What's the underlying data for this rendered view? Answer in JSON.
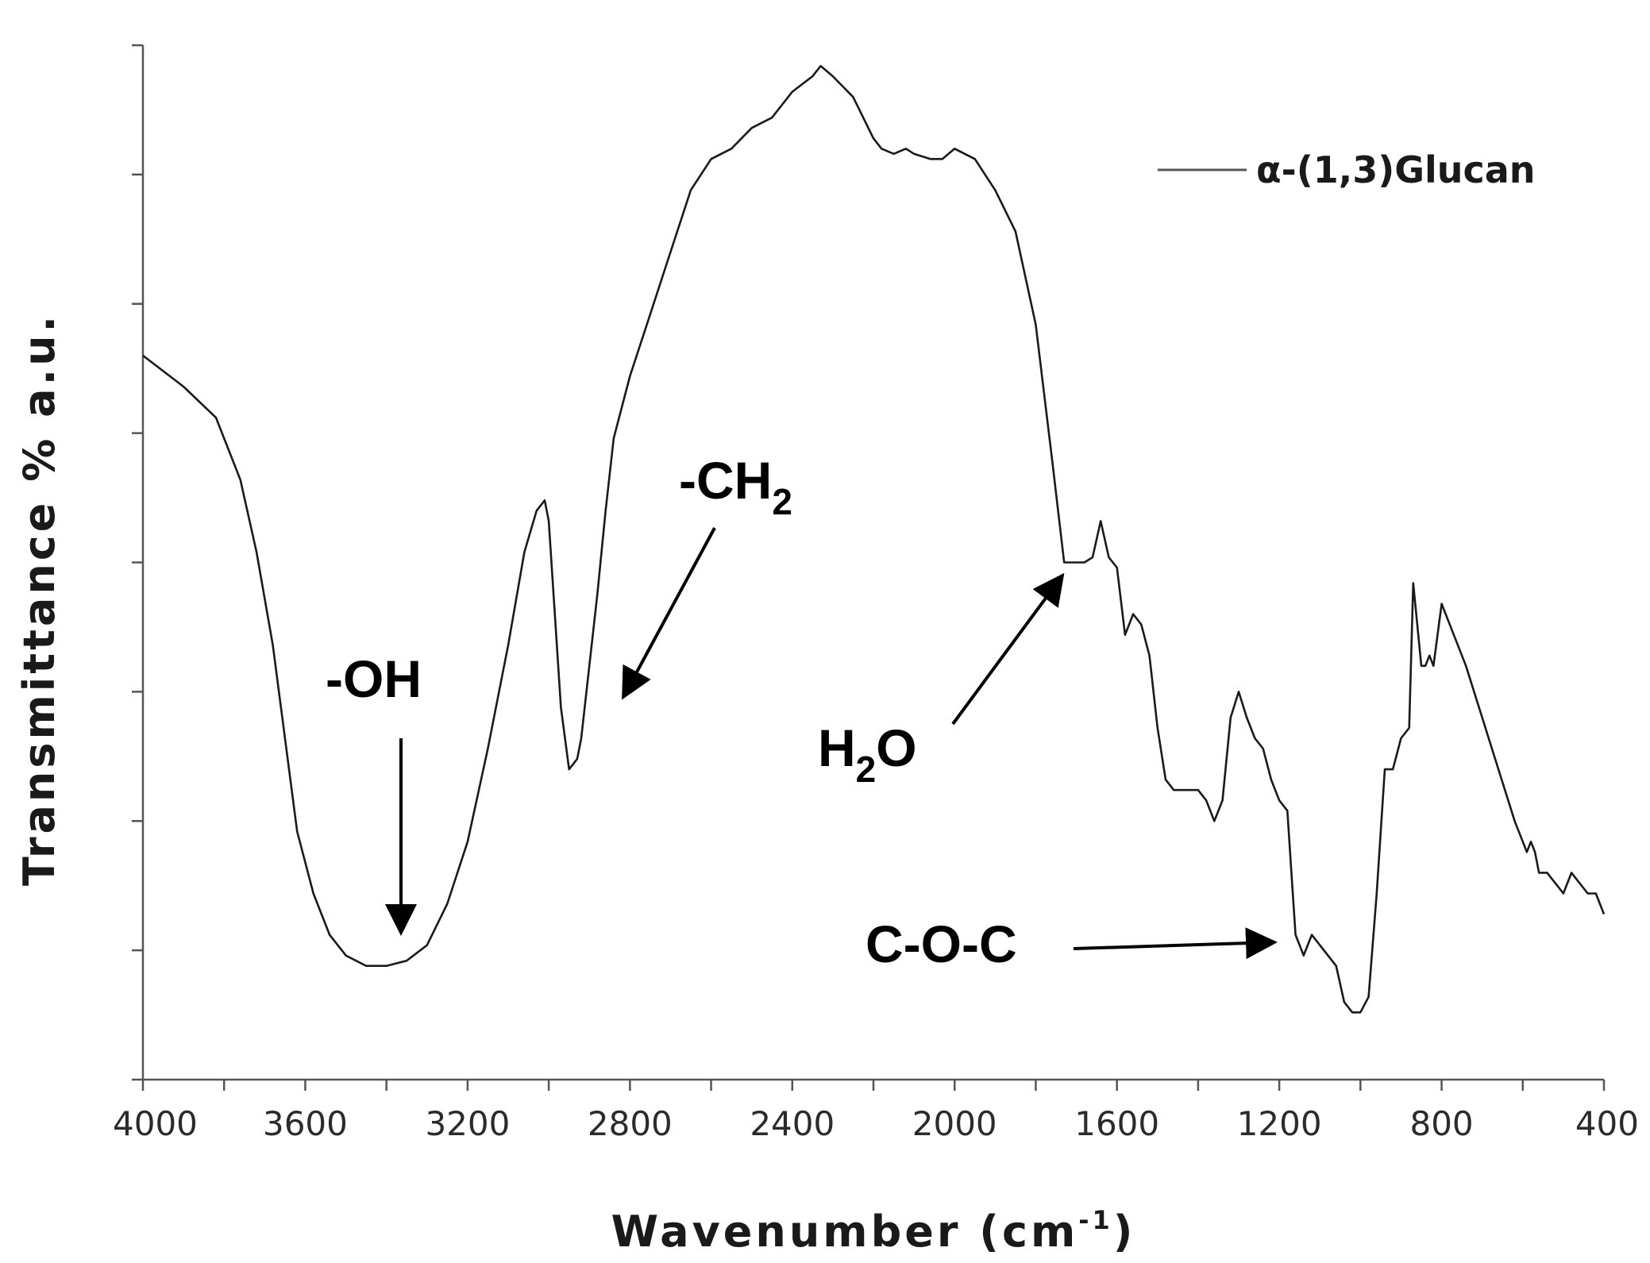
{
  "chart_data": {
    "type": "line",
    "title": "",
    "xlabel": "Wavenumber (cm",
    "xlabel_sup": "-1",
    "xlabel_close": ")",
    "ylabel": "Transmittance % a.u.",
    "xlim": [
      4000,
      400
    ],
    "ylim": [
      0,
      100
    ],
    "x_reversed": true,
    "x_ticks": [
      4000,
      3600,
      3200,
      2800,
      2400,
      2000,
      1600,
      1200,
      800,
      400
    ],
    "x_minor_step": 200,
    "y_tick_count": 9,
    "y_tick_labels_shown": false,
    "grid": false,
    "legend": {
      "position": "top-right",
      "entries": [
        "α-(1,3)Glucan"
      ]
    },
    "line_color": "#1a1a1a",
    "series": [
      {
        "name": "α-(1,3)Glucan",
        "x": [
          4000,
          3900,
          3820,
          3760,
          3720,
          3680,
          3650,
          3620,
          3580,
          3540,
          3500,
          3450,
          3400,
          3350,
          3300,
          3250,
          3200,
          3150,
          3100,
          3060,
          3030,
          3010,
          3000,
          2990,
          2970,
          2950,
          2930,
          2920,
          2900,
          2880,
          2860,
          2840,
          2800,
          2750,
          2700,
          2650,
          2600,
          2550,
          2500,
          2450,
          2400,
          2350,
          2330,
          2300,
          2250,
          2200,
          2180,
          2150,
          2120,
          2100,
          2060,
          2030,
          2000,
          1950,
          1900,
          1850,
          1800,
          1760,
          1730,
          1700,
          1680,
          1660,
          1640,
          1620,
          1600,
          1580,
          1560,
          1540,
          1520,
          1500,
          1480,
          1460,
          1440,
          1420,
          1400,
          1380,
          1360,
          1340,
          1320,
          1300,
          1280,
          1260,
          1240,
          1220,
          1200,
          1180,
          1170,
          1160,
          1140,
          1130,
          1120,
          1100,
          1080,
          1060,
          1040,
          1020,
          1000,
          980,
          960,
          940,
          920,
          900,
          880,
          870,
          860,
          850,
          840,
          830,
          820,
          800,
          780,
          760,
          740,
          700,
          660,
          620,
          600,
          590,
          580,
          570,
          560,
          540,
          520,
          500,
          480,
          460,
          440,
          420,
          410,
          400
        ],
        "y": [
          70,
          67,
          64,
          58,
          51,
          42,
          33,
          24,
          18,
          14,
          12,
          11,
          11,
          11.5,
          13,
          17,
          23,
          32,
          42,
          51,
          55,
          56,
          54,
          48,
          36,
          30,
          31,
          33,
          40,
          47,
          55,
          62,
          68,
          74,
          80,
          86,
          89,
          90,
          92,
          93,
          95.5,
          97,
          98,
          97,
          95,
          91,
          90,
          89.5,
          90,
          89.5,
          89,
          89,
          90,
          89,
          86,
          82,
          73,
          60,
          50,
          50,
          50,
          50.5,
          54,
          50.5,
          49.5,
          43,
          45,
          44,
          41,
          34,
          29,
          28,
          28,
          28,
          28,
          27,
          25,
          27,
          35,
          37.5,
          35,
          33,
          32,
          29,
          27,
          26,
          20,
          14,
          12,
          13,
          14,
          13,
          12,
          11,
          7.5,
          6.5,
          6.5,
          8,
          18,
          30,
          30,
          33,
          34,
          48,
          44,
          40,
          40,
          41,
          40,
          46,
          44,
          42,
          40,
          35,
          30,
          25,
          23,
          22,
          23,
          22,
          20,
          20,
          19,
          18,
          20,
          19,
          18,
          18,
          17,
          16
        ]
      }
    ],
    "annotations": [
      {
        "text": "-OH",
        "sub": "",
        "tail": "",
        "points_to_x": 3360
      },
      {
        "text": "-CH",
        "sub": "2",
        "tail": "",
        "points_to_x": 2810
      },
      {
        "text": "H",
        "sub": "2",
        "tail": "O",
        "points_to_x": 1720
      },
      {
        "text": "C-O-C",
        "sub": "",
        "tail": "",
        "points_to_x": 1180
      }
    ]
  }
}
